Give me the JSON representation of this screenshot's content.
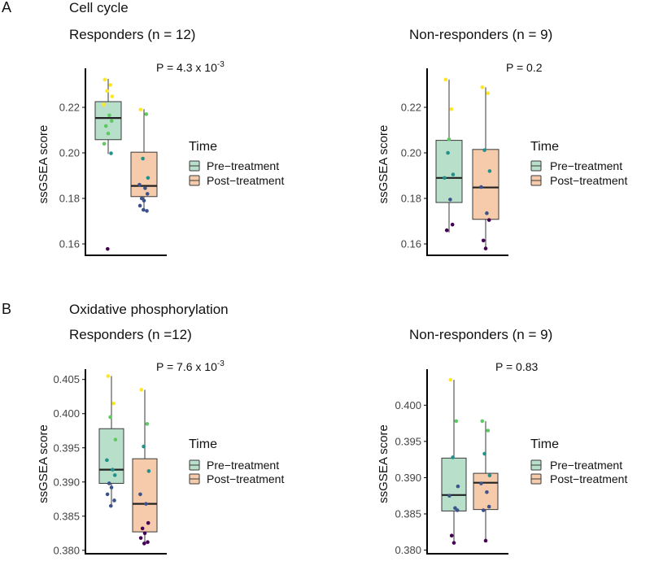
{
  "colors": {
    "pre_fill": "#b7dfca",
    "post_fill": "#f5cbab",
    "box_stroke": "#3a3a3a",
    "axis": "#000000",
    "point_palette": [
      "#440154",
      "#3b528b",
      "#21918c",
      "#5ec962",
      "#fde725"
    ]
  },
  "legend": {
    "title": "Time",
    "entries": [
      "Pre−treatment",
      "Post−treatment"
    ]
  },
  "panels": [
    {
      "letter": "A",
      "title": "Cell cycle"
    },
    {
      "letter": "B",
      "title": "Oxidative phosphorylation"
    }
  ],
  "chart_data": [
    {
      "type": "box",
      "panel": "A",
      "title": "Responders (n = 12)",
      "annotation": {
        "prefix": "P = 4.3 x 10",
        "exponent": "-3"
      },
      "ylabel": "ssGSEA score",
      "ylim": [
        0.155,
        0.235
      ],
      "yticks": [
        0.16,
        0.18,
        0.2,
        0.22
      ],
      "tick_labels": [
        "0.16",
        "0.18",
        "0.20",
        "0.22"
      ],
      "categories": [
        "Pre−treatment",
        "Post−treatment"
      ],
      "boxes": [
        {
          "name": "Pre−treatment",
          "q1": 0.2058,
          "median": 0.2153,
          "q3": 0.2225,
          "whisker_low": 0.1995,
          "whisker_high": 0.2325,
          "points": [
            0.2322,
            0.2298,
            0.2272,
            0.2248,
            0.2212,
            0.2165,
            0.214,
            0.2118,
            0.2085,
            0.204,
            0.1998,
            0.1578
          ]
        },
        {
          "name": "Post−treatment",
          "q1": 0.1808,
          "median": 0.1855,
          "q3": 0.2003,
          "whisker_low": 0.1742,
          "whisker_high": 0.2192,
          "points": [
            0.219,
            0.217,
            0.1975,
            0.189,
            0.186,
            0.1845,
            0.182,
            0.18,
            0.179,
            0.1768,
            0.1745,
            0.175
          ]
        }
      ]
    },
    {
      "type": "box",
      "panel": "A",
      "title": "Non-responders (n = 9)",
      "annotation": {
        "prefix": "P = 0.2",
        "exponent": ""
      },
      "ylabel": "ssGSEA score",
      "ylim": [
        0.155,
        0.235
      ],
      "yticks": [
        0.16,
        0.18,
        0.2,
        0.22
      ],
      "tick_labels": [
        "0.16",
        "0.18",
        "0.20",
        "0.22"
      ],
      "categories": [
        "Pre−treatment",
        "Post−treatment"
      ],
      "boxes": [
        {
          "name": "Pre−treatment",
          "q1": 0.1782,
          "median": 0.189,
          "q3": 0.2055,
          "whisker_low": 0.165,
          "whisker_high": 0.2322,
          "points": [
            0.2322,
            0.2192,
            0.2,
            0.1905,
            0.189,
            0.1795,
            0.1685,
            0.166,
            0.206
          ]
        },
        {
          "name": "Post−treatment",
          "q1": 0.1708,
          "median": 0.1848,
          "q3": 0.2015,
          "whisker_low": 0.1575,
          "whisker_high": 0.2288,
          "points": [
            0.2288,
            0.2262,
            0.2012,
            0.192,
            0.185,
            0.1735,
            0.1705,
            0.1615,
            0.158
          ]
        }
      ]
    },
    {
      "type": "box",
      "panel": "B",
      "title": "Responders (n =12)",
      "annotation": {
        "prefix": "P = 7.6 x 10",
        "exponent": "-3"
      },
      "ylabel": "ssGSEA score",
      "ylim": [
        0.3795,
        0.4058
      ],
      "yticks": [
        0.38,
        0.385,
        0.39,
        0.395,
        0.4,
        0.405
      ],
      "tick_labels": [
        "0.380",
        "0.385",
        "0.390",
        "0.395",
        "0.400",
        "0.405"
      ],
      "categories": [
        "Pre−treatment",
        "Post−treatment"
      ],
      "boxes": [
        {
          "name": "Pre−treatment",
          "q1": 0.3898,
          "median": 0.3918,
          "q3": 0.3978,
          "whisker_low": 0.3865,
          "whisker_high": 0.4055,
          "points": [
            0.4055,
            0.4015,
            0.3995,
            0.3962,
            0.3932,
            0.3918,
            0.391,
            0.3898,
            0.3892,
            0.3882,
            0.3873,
            0.3865
          ]
        },
        {
          "name": "Post−treatment",
          "q1": 0.3827,
          "median": 0.3868,
          "q3": 0.3934,
          "whisker_low": 0.381,
          "whisker_high": 0.4035,
          "points": [
            0.4035,
            0.3985,
            0.3952,
            0.3916,
            0.3882,
            0.3868,
            0.384,
            0.3832,
            0.3825,
            0.3818,
            0.3812,
            0.381
          ]
        }
      ]
    },
    {
      "type": "box",
      "panel": "B",
      "title": "Non-responders (n = 9)",
      "annotation": {
        "prefix": "P = 0.83",
        "exponent": ""
      },
      "ylabel": "ssGSEA score",
      "ylim": [
        0.3795,
        0.4043
      ],
      "yticks": [
        0.38,
        0.385,
        0.39,
        0.395,
        0.4
      ],
      "tick_labels": [
        "0.380",
        "0.385",
        "0.390",
        "0.395",
        "0.400"
      ],
      "categories": [
        "Pre−treatment",
        "Post−treatment"
      ],
      "boxes": [
        {
          "name": "Pre−treatment",
          "q1": 0.3854,
          "median": 0.3876,
          "q3": 0.3927,
          "whisker_low": 0.381,
          "whisker_high": 0.4035,
          "points": [
            0.4035,
            0.3978,
            0.3928,
            0.3888,
            0.3875,
            0.3858,
            0.3855,
            0.382,
            0.381
          ]
        },
        {
          "name": "Post−treatment",
          "q1": 0.3856,
          "median": 0.3893,
          "q3": 0.3906,
          "whisker_low": 0.3813,
          "whisker_high": 0.3978,
          "points": [
            0.3978,
            0.3965,
            0.3933,
            0.3903,
            0.3892,
            0.388,
            0.386,
            0.3855,
            0.3813
          ]
        }
      ]
    }
  ]
}
